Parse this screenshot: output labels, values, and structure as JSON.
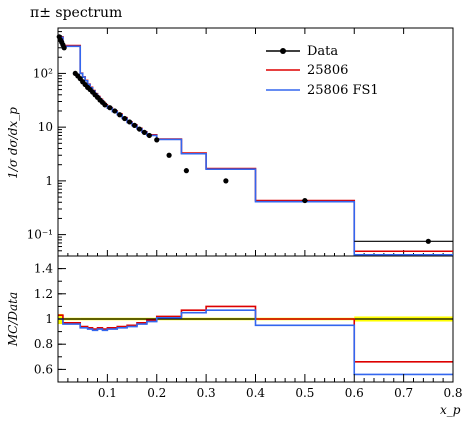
{
  "chart_data": [
    {
      "type": "line",
      "title": "π± spectrum",
      "ylabel": "1/σ dσ/dx_p",
      "xlabel": "",
      "xlim": [
        0.0,
        0.8
      ],
      "ylim": [
        0.04,
        700
      ],
      "yscale": "log",
      "yticks": [
        {
          "v": 0.1,
          "label": "10⁻¹"
        },
        {
          "v": 1,
          "label": "1"
        },
        {
          "v": 10,
          "label": "10"
        },
        {
          "v": 100,
          "label": "10²"
        }
      ],
      "legend": {
        "placement": "top-right",
        "entries": [
          "Data",
          "25806",
          "25806 FS1"
        ]
      },
      "data": {
        "name": "Data",
        "x": [
          0.0025,
          0.005,
          0.0075,
          0.01,
          0.0125,
          0.035,
          0.04,
          0.045,
          0.05,
          0.055,
          0.06,
          0.065,
          0.07,
          0.075,
          0.08,
          0.085,
          0.09,
          0.095,
          0.105,
          0.115,
          0.125,
          0.135,
          0.145,
          0.155,
          0.165,
          0.175,
          0.185,
          0.2,
          0.225,
          0.26,
          0.34,
          0.5,
          0.75
        ],
        "y": [
          480,
          420,
          380,
          340,
          300,
          100,
          90,
          80,
          70,
          62,
          55,
          50,
          45,
          40,
          36,
          32,
          29,
          26,
          23,
          20,
          17,
          14.5,
          12.5,
          10.8,
          9.2,
          8.0,
          7.0,
          5.8,
          3.0,
          1.55,
          1.0,
          0.43,
          0.075
        ],
        "color": "#000000"
      },
      "series": [
        {
          "name": "25806",
          "color": "#dd0000",
          "edges": [
            0.0,
            0.01,
            0.045,
            0.05,
            0.055,
            0.06,
            0.065,
            0.07,
            0.075,
            0.08,
            0.085,
            0.09,
            0.095,
            0.1,
            0.11,
            0.12,
            0.13,
            0.14,
            0.15,
            0.16,
            0.17,
            0.18,
            0.2,
            0.25,
            0.3,
            0.4,
            0.6,
            0.8
          ],
          "values": [
            480,
            330,
            101,
            86,
            74,
            63,
            55,
            48,
            42,
            37,
            33,
            29,
            26,
            23,
            20,
            17.5,
            15,
            12.5,
            11,
            9.5,
            8.2,
            7.2,
            6.0,
            3.3,
            1.7,
            0.43,
            0.049
          ]
        },
        {
          "name": "25806 FS1",
          "color": "#3366ee",
          "edges": [
            0.0,
            0.01,
            0.045,
            0.05,
            0.055,
            0.06,
            0.065,
            0.07,
            0.075,
            0.08,
            0.085,
            0.09,
            0.095,
            0.1,
            0.11,
            0.12,
            0.13,
            0.14,
            0.15,
            0.16,
            0.17,
            0.18,
            0.2,
            0.25,
            0.3,
            0.4,
            0.6,
            0.8
          ],
          "values": [
            470,
            320,
            100,
            85,
            73,
            62,
            54,
            47,
            41,
            36,
            32,
            28,
            25,
            22.5,
            19.5,
            17,
            14.5,
            12.2,
            10.7,
            9.3,
            8.0,
            7.0,
            5.9,
            3.2,
            1.65,
            0.41,
            0.042
          ]
        }
      ]
    },
    {
      "type": "line",
      "title": "",
      "ylabel": "MC/Data",
      "xlabel": "x_p",
      "xlim": [
        0.0,
        0.8
      ],
      "ylim": [
        0.5,
        1.5
      ],
      "yticks": [
        {
          "v": 0.6,
          "label": "0.6"
        },
        {
          "v": 0.8,
          "label": "0.8"
        },
        {
          "v": 1.0,
          "label": "1"
        },
        {
          "v": 1.2,
          "label": "1.2"
        },
        {
          "v": 1.4,
          "label": "1.4"
        }
      ],
      "xticks": [
        {
          "v": 0.1,
          "label": "0.1"
        },
        {
          "v": 0.2,
          "label": "0.2"
        },
        {
          "v": 0.3,
          "label": "0.3"
        },
        {
          "v": 0.4,
          "label": "0.4"
        },
        {
          "v": 0.5,
          "label": "0.5"
        },
        {
          "v": 0.6,
          "label": "0.6"
        },
        {
          "v": 0.7,
          "label": "0.7"
        },
        {
          "v": 0.8,
          "label": "0.8"
        }
      ],
      "reference": 1.0,
      "band_color": "#ffff00",
      "band": {
        "edges": [
          0.0,
          0.01,
          0.045,
          0.6,
          0.8
        ],
        "lo": [
          0.96,
          0.99,
          0.99,
          0.98,
          0.97
        ],
        "hi": [
          1.04,
          1.01,
          1.01,
          1.02,
          1.03
        ]
      },
      "series": [
        {
          "name": "25806",
          "color": "#dd0000",
          "edges": [
            0.0,
            0.01,
            0.045,
            0.06,
            0.07,
            0.08,
            0.09,
            0.1,
            0.12,
            0.14,
            0.16,
            0.18,
            0.2,
            0.25,
            0.3,
            0.4,
            0.6,
            0.8
          ],
          "values": [
            1.03,
            0.97,
            0.94,
            0.93,
            0.92,
            0.93,
            0.92,
            0.93,
            0.94,
            0.95,
            0.97,
            0.99,
            1.02,
            1.07,
            1.1,
            1.0,
            0.66
          ]
        },
        {
          "name": "25806 FS1",
          "color": "#3366ee",
          "edges": [
            0.0,
            0.01,
            0.045,
            0.06,
            0.07,
            0.08,
            0.09,
            0.1,
            0.12,
            0.14,
            0.16,
            0.18,
            0.2,
            0.25,
            0.3,
            0.4,
            0.6,
            0.8
          ],
          "values": [
            1.0,
            0.96,
            0.93,
            0.92,
            0.91,
            0.92,
            0.91,
            0.92,
            0.93,
            0.94,
            0.96,
            0.98,
            1.01,
            1.05,
            1.07,
            0.95,
            0.56
          ]
        }
      ]
    }
  ]
}
